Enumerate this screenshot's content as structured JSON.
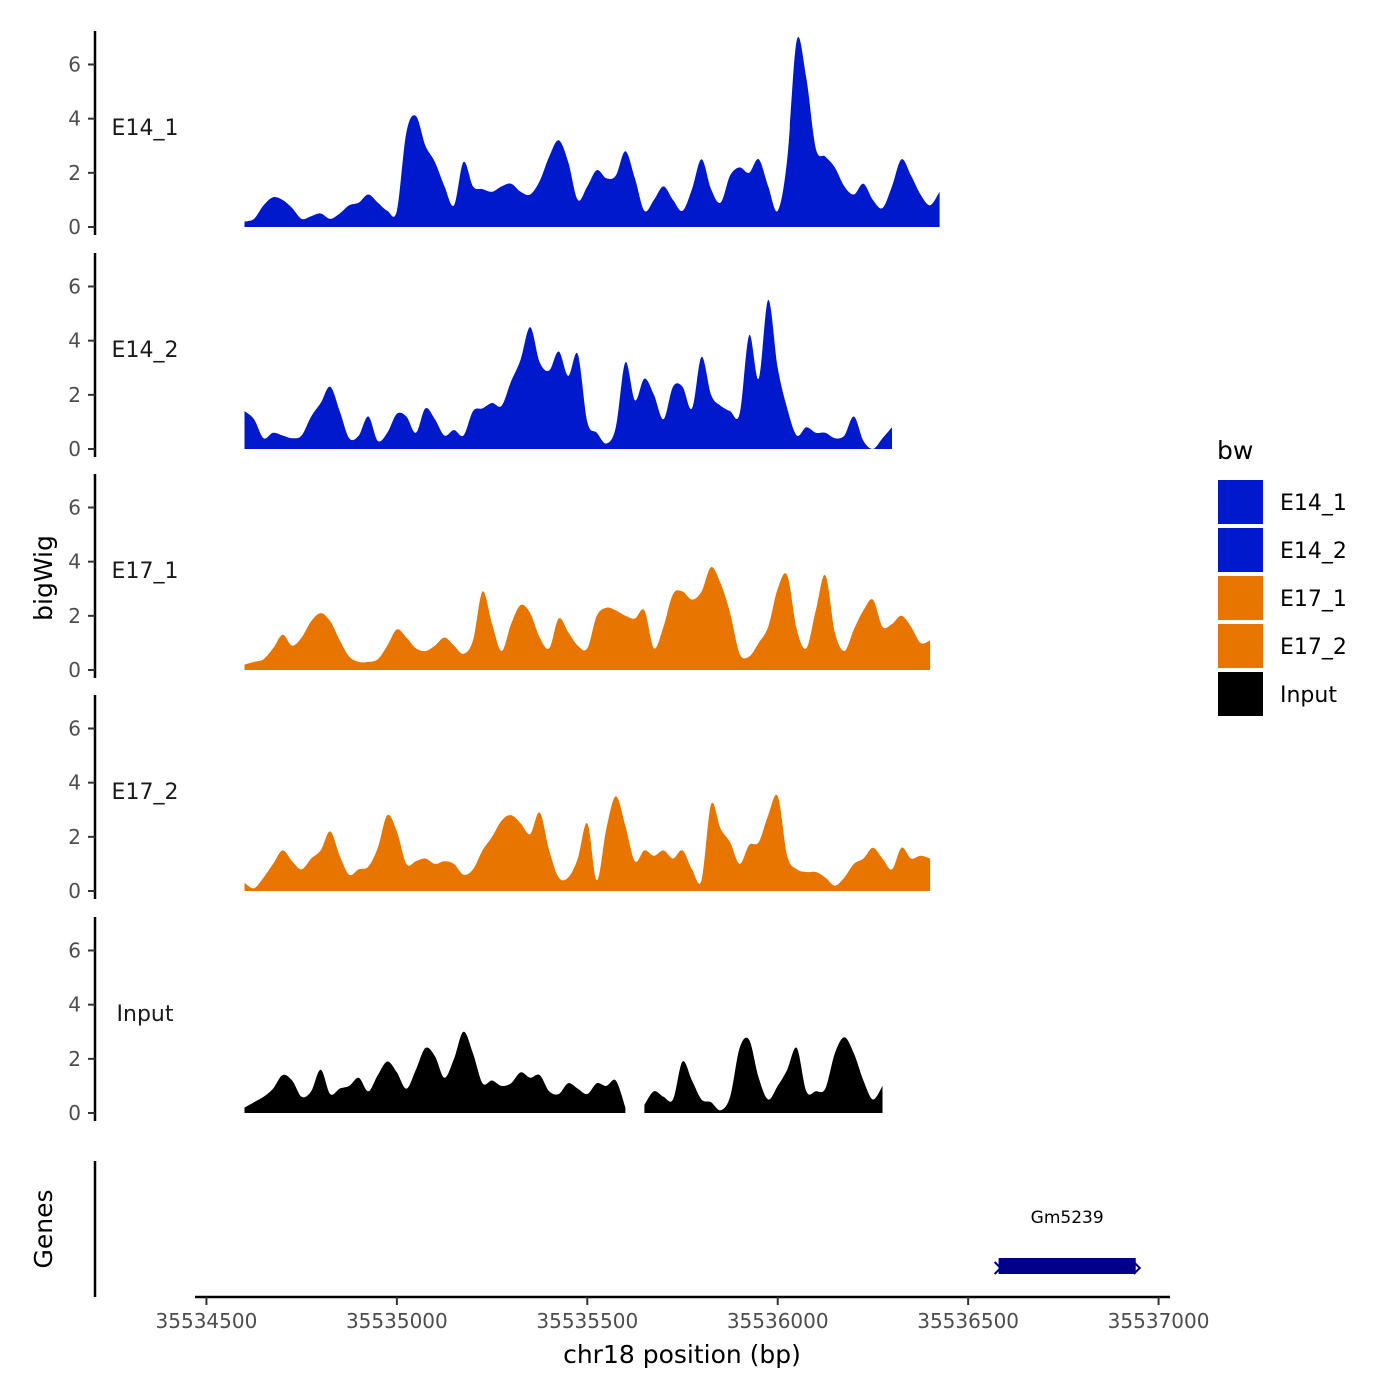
{
  "chart_data": {
    "type": "area",
    "x_axis": {
      "label": "chr18 position (bp)",
      "range": [
        35534470,
        35537030
      ],
      "ticks": [
        35534500,
        35535000,
        35535500,
        35536000,
        35536500,
        35537000
      ],
      "tick_labels": [
        "35534500",
        "35535000",
        "35535500",
        "35536000",
        "35536500",
        "35537000"
      ]
    },
    "y_axis": {
      "label": "bigWig",
      "range": [
        0,
        7.2
      ],
      "ticks": [
        0,
        2,
        4,
        6
      ],
      "tick_labels": [
        "0",
        "2",
        "4",
        "6"
      ]
    },
    "x_start": 35534600,
    "x_step": 25,
    "series": [
      {
        "name": "E14_1",
        "label": "E14_1",
        "color": "#0019CC",
        "values": [
          0.2,
          0.3,
          0.8,
          1.1,
          1.0,
          0.7,
          0.3,
          0.4,
          0.5,
          0.3,
          0.5,
          0.8,
          0.9,
          1.2,
          0.9,
          0.6,
          0.6,
          3.5,
          4.1,
          3.0,
          2.4,
          1.5,
          0.8,
          2.4,
          1.5,
          1.4,
          1.3,
          1.5,
          1.6,
          1.3,
          1.2,
          1.7,
          2.6,
          3.2,
          2.4,
          1.0,
          1.5,
          2.1,
          1.8,
          1.9,
          2.8,
          1.8,
          0.6,
          1.0,
          1.5,
          1.0,
          0.6,
          1.4,
          2.5,
          1.4,
          0.9,
          1.9,
          2.2,
          2.0,
          2.5,
          1.5,
          0.6,
          2.5,
          6.9,
          5.5,
          2.9,
          2.6,
          2.2,
          1.5,
          1.2,
          1.6,
          1.0,
          0.7,
          1.5,
          2.5,
          1.9,
          1.2,
          0.8,
          1.3
        ]
      },
      {
        "name": "E14_2",
        "label": "E14_2",
        "color": "#0019CC",
        "values": [
          1.4,
          1.1,
          0.4,
          0.6,
          0.5,
          0.4,
          0.5,
          1.2,
          1.7,
          2.3,
          1.4,
          0.4,
          0.5,
          1.2,
          0.3,
          0.6,
          1.3,
          1.2,
          0.6,
          1.5,
          1.1,
          0.5,
          0.7,
          0.5,
          1.4,
          1.5,
          1.7,
          1.6,
          2.5,
          3.3,
          4.5,
          3.2,
          2.9,
          3.6,
          2.7,
          3.5,
          1.0,
          0.6,
          0.2,
          0.8,
          3.2,
          1.8,
          2.6,
          2.0,
          1.1,
          2.3,
          2.3,
          1.5,
          3.4,
          2.0,
          1.6,
          1.4,
          1.3,
          4.2,
          2.6,
          5.5,
          3.0,
          1.5,
          0.5,
          0.8,
          0.6,
          0.6,
          0.4,
          0.5,
          1.2,
          0.3,
          0.0,
          0.4,
          0.8
        ]
      },
      {
        "name": "E17_1",
        "label": "E17_1",
        "color": "#E87500",
        "values": [
          0.2,
          0.3,
          0.4,
          0.8,
          1.3,
          0.9,
          1.2,
          1.8,
          2.1,
          1.8,
          1.1,
          0.5,
          0.3,
          0.3,
          0.4,
          0.9,
          1.5,
          1.2,
          0.8,
          0.7,
          0.9,
          1.2,
          0.9,
          0.6,
          1.1,
          2.9,
          1.7,
          0.7,
          1.7,
          2.4,
          2.1,
          1.2,
          0.8,
          1.9,
          1.4,
          0.9,
          0.8,
          2.0,
          2.3,
          2.2,
          2.0,
          1.9,
          2.2,
          0.8,
          1.6,
          2.8,
          2.9,
          2.6,
          2.9,
          3.8,
          3.2,
          2.1,
          0.6,
          0.5,
          1.0,
          1.6,
          3.0,
          3.5,
          1.5,
          0.8,
          2.2,
          3.5,
          1.4,
          0.7,
          1.5,
          2.2,
          2.6,
          1.6,
          1.7,
          2.0,
          1.6,
          1.0,
          1.1
        ]
      },
      {
        "name": "E17_2",
        "label": "E17_2",
        "color": "#E87500",
        "values": [
          0.3,
          0.1,
          0.5,
          1.0,
          1.5,
          1.1,
          0.8,
          1.2,
          1.5,
          2.2,
          1.3,
          0.6,
          0.8,
          0.9,
          1.6,
          2.8,
          2.2,
          1.0,
          1.1,
          1.2,
          1.0,
          1.1,
          1.0,
          0.6,
          0.8,
          1.5,
          2.0,
          2.6,
          2.8,
          2.5,
          2.1,
          2.9,
          1.5,
          0.5,
          0.5,
          1.2,
          2.5,
          0.4,
          2.3,
          3.5,
          2.4,
          1.1,
          1.5,
          1.3,
          1.5,
          1.2,
          1.5,
          0.8,
          0.4,
          3.2,
          2.3,
          1.8,
          1.0,
          1.7,
          1.8,
          2.8,
          3.5,
          1.3,
          0.8,
          0.7,
          0.7,
          0.5,
          0.2,
          0.5,
          1.0,
          1.2,
          1.6,
          1.2,
          0.8,
          1.6,
          1.2,
          1.3,
          1.2
        ]
      },
      {
        "name": "Input",
        "label": "Input",
        "color": "#000000",
        "values": [
          0.2,
          0.4,
          0.6,
          0.9,
          1.4,
          1.2,
          0.6,
          0.8,
          1.6,
          0.7,
          0.9,
          1.0,
          1.3,
          0.8,
          1.4,
          1.9,
          1.5,
          0.9,
          1.6,
          2.4,
          2.1,
          1.3,
          2.0,
          3.0,
          2.2,
          1.1,
          1.2,
          1.0,
          1.1,
          1.5,
          1.3,
          1.4,
          0.8,
          0.7,
          1.1,
          0.9,
          0.7,
          1.1,
          1.0,
          1.2,
          0.2,
          null,
          0.3,
          0.8,
          0.6,
          0.5,
          1.9,
          1.2,
          0.5,
          0.4,
          0.1,
          0.6,
          2.4,
          2.7,
          1.3,
          0.5,
          1.0,
          1.6,
          2.4,
          0.8,
          0.8,
          0.9,
          2.2,
          2.8,
          2.2,
          1.2,
          0.5,
          1.0
        ]
      }
    ],
    "legend": {
      "title": "bw",
      "position": "right",
      "entries": [
        {
          "label": "E14_1",
          "color": "#0019CC"
        },
        {
          "label": "E14_2",
          "color": "#0019CC"
        },
        {
          "label": "E17_1",
          "color": "#E87500"
        },
        {
          "label": "E17_2",
          "color": "#E87500"
        },
        {
          "label": "Input",
          "color": "#000000"
        }
      ]
    },
    "genes_track": {
      "label": "Genes",
      "genes": [
        {
          "name": "Gm5239",
          "start": 35536580,
          "end": 35536940,
          "color": "#00008B"
        }
      ]
    }
  }
}
